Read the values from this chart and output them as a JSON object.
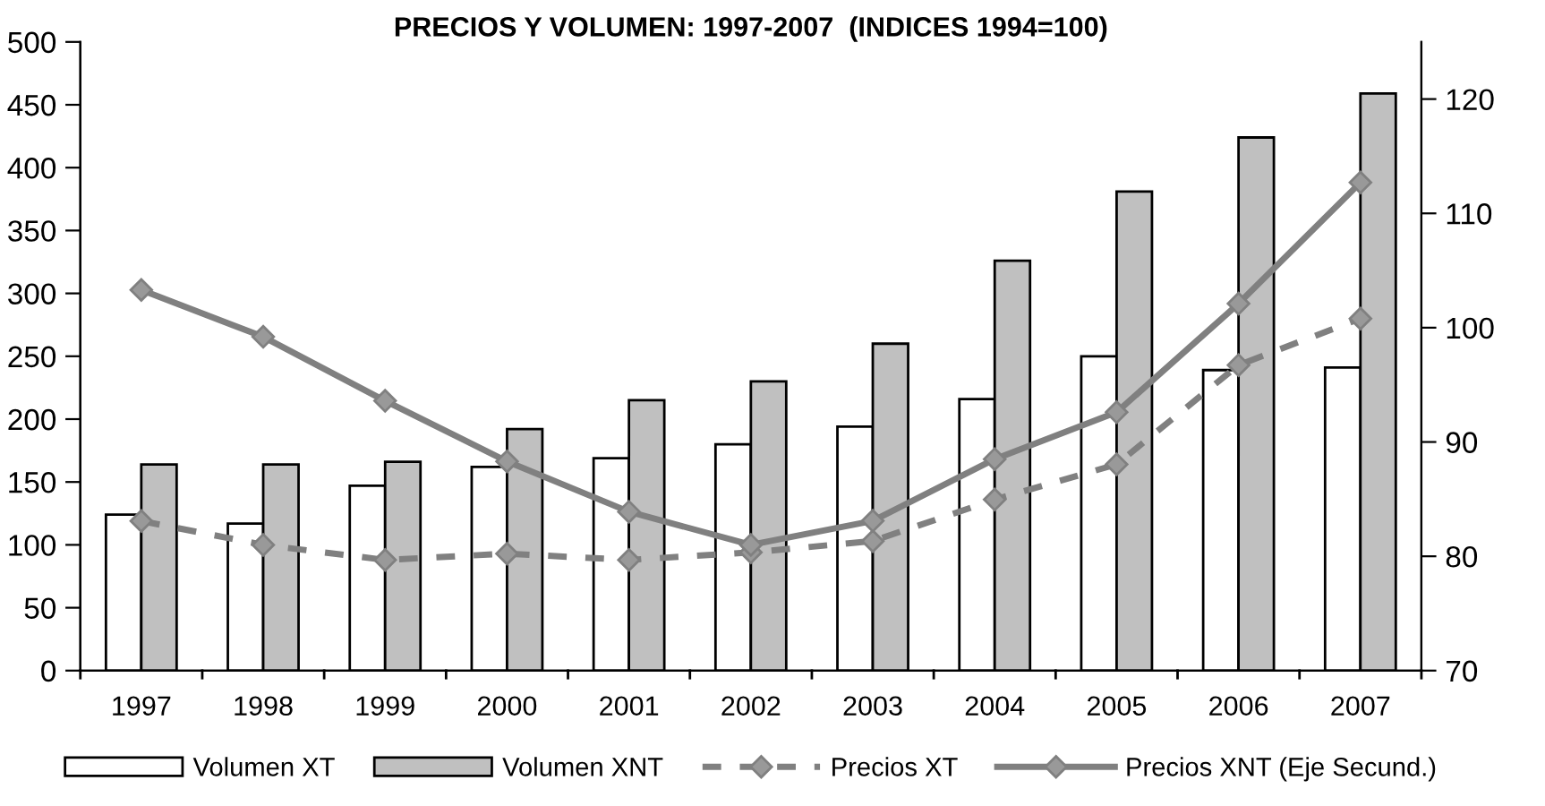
{
  "chart_data": {
    "type": "bar",
    "title": "PRECIOS Y VOLUMEN: 1997-2007  (INDICES 1994=100)",
    "categories": [
      "1997",
      "1998",
      "1999",
      "2000",
      "2001",
      "2002",
      "2003",
      "2004",
      "2005",
      "2006",
      "2007"
    ],
    "series": [
      {
        "name": "Volumen XT",
        "color": "#ffffff",
        "values": [
          124,
          117,
          147,
          162,
          169,
          180,
          194,
          216,
          250,
          239,
          241
        ]
      },
      {
        "name": "Volumen XNT",
        "color": "#c0c0c0",
        "values": [
          164,
          164,
          166,
          192,
          215,
          230,
          260,
          326,
          381,
          424,
          459
        ]
      },
      {
        "name": "Precios XT",
        "type": "line",
        "color": "#808080",
        "line_style": "dashed",
        "marker": "diamond",
        "values": [
          119,
          100,
          88,
          93,
          88,
          94,
          103,
          136,
          164,
          243,
          280
        ]
      },
      {
        "name": "Precios XNT (Eje Secund.)",
        "type": "line",
        "axis": "y2",
        "color": "#808080",
        "line_style": "solid",
        "marker": "diamond",
        "values": [
          103.3,
          99.2,
          93.6,
          88.3,
          83.9,
          81.0,
          83.1,
          88.5,
          92.6,
          102.1,
          112.7
        ]
      }
    ],
    "ylim": [
      0,
      500
    ],
    "yticks": [
      0,
      50,
      100,
      150,
      200,
      250,
      300,
      350,
      400,
      450,
      500
    ],
    "y2lim": [
      70,
      125
    ],
    "y2ticks": [
      70,
      80,
      90,
      100,
      110,
      120
    ],
    "grid": false,
    "legend": "bottom"
  }
}
